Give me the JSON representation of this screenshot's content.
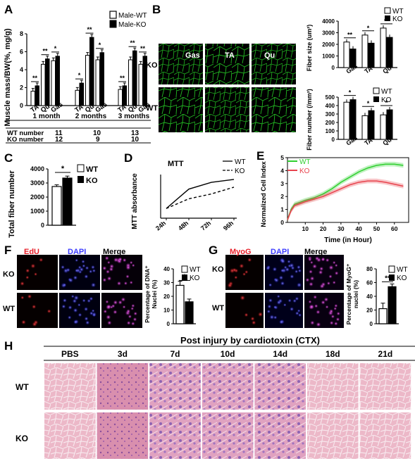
{
  "panels": {
    "A": {
      "letter": "A",
      "ylabel": "Muscle mass/BW(%, mg/g)",
      "legend": [
        "Male-WT",
        "Male-KO"
      ],
      "table": {
        "rows": [
          {
            "label": "WT number",
            "values": [
              "11",
              "10",
              "13"
            ]
          },
          {
            "label": "KO number",
            "values": [
              "12",
              "9",
              "10"
            ]
          }
        ]
      }
    },
    "B": {
      "letter": "B",
      "columns": [
        "Gas",
        "TA",
        "Qu"
      ],
      "rows": [
        "KO",
        "WT"
      ],
      "size_ylabel": "Fiber size (um²)",
      "number_ylabel": "Fiber number (/mm²)"
    },
    "C": {
      "letter": "C"
    },
    "D": {
      "letter": "D"
    },
    "E": {
      "letter": "E"
    },
    "F": {
      "letter": "F",
      "cols": [
        "EdU",
        "DAPI",
        "Merge"
      ],
      "rows": [
        "KO",
        "WT"
      ],
      "ylabel_l1": "Percentage of DNA⁺",
      "ylabel_l2": "Nuclei (%)"
    },
    "G": {
      "letter": "G",
      "cols": [
        "MyoG",
        "DAPI",
        "Merge"
      ],
      "rows": [
        "KO",
        "WT"
      ],
      "ylabel_l1": "Percentage of MyoG⁺",
      "ylabel_l2": "nuclei (%)"
    },
    "H": {
      "letter": "H",
      "title": "Post injury by cardiotoxin (CTX)",
      "columns": [
        "PBS",
        "3d",
        "7d",
        "10d",
        "14d",
        "18d",
        "21d"
      ],
      "rows": [
        "WT",
        "KO"
      ]
    }
  },
  "legend_wt": "WT",
  "legend_ko": "KO",
  "sig1": "*",
  "sig2": "**",
  "colors": {
    "ko": "#000000",
    "wt": "#ffffff",
    "green": "#2fcf2f",
    "red": "#e8434d",
    "edu_red": "#e8202a",
    "dapi_blue": "#3b3bff",
    "merge_magenta": "#c040c0",
    "he_pink": "#e9a9bd",
    "he_purple": "#7f5aa8"
  },
  "chart_data": [
    {
      "panel": "A",
      "type": "bar",
      "groups": [
        "1 month",
        "2 months",
        "3 months"
      ],
      "categories": [
        "TA",
        "Qu",
        "Gas"
      ],
      "yticks": [
        0,
        2,
        4,
        6,
        8
      ],
      "ylim": [
        0,
        8
      ],
      "series": [
        {
          "name": "Male-WT",
          "values": [
            [
              1.6,
              4.6,
              5.0
            ],
            [
              1.7,
              5.6,
              5.1
            ],
            [
              1.8,
              5.1,
              4.6
            ]
          ]
        },
        {
          "name": "Male-KO",
          "values": [
            [
              2.2,
              5.2,
              5.5
            ],
            [
              2.5,
              7.6,
              5.9
            ],
            [
              2.2,
              6.1,
              5.5
            ]
          ]
        }
      ],
      "significance": [
        [
          "**",
          "**",
          "*"
        ],
        [
          "*",
          "**",
          "*"
        ],
        [
          "**",
          "**",
          "**"
        ]
      ]
    },
    {
      "panel": "B-size",
      "type": "bar",
      "categories": [
        "Gas",
        "TA",
        "Qu"
      ],
      "yticks": [
        0,
        1000,
        2000,
        3000,
        4000
      ],
      "ylim": [
        0,
        4000
      ],
      "series": [
        {
          "name": "WT",
          "values": [
            2200,
            2800,
            3400
          ]
        },
        {
          "name": "KO",
          "values": [
            1600,
            2100,
            2600
          ]
        }
      ],
      "significance": [
        "**",
        "*",
        "**"
      ]
    },
    {
      "panel": "B-number",
      "type": "bar",
      "categories": [
        "Gas",
        "TA",
        "Qu"
      ],
      "yticks": [
        0,
        100,
        200,
        300,
        400,
        500
      ],
      "ylim": [
        0,
        500
      ],
      "series": [
        {
          "name": "WT",
          "values": [
            440,
            280,
            290
          ]
        },
        {
          "name": "KO",
          "values": [
            470,
            340,
            350
          ]
        }
      ],
      "significance": [
        "*",
        "*",
        "*"
      ]
    },
    {
      "panel": "C",
      "type": "bar",
      "ylabel": "Total fiber number",
      "categories": [
        "WT",
        "KO"
      ],
      "yticks": [
        0,
        1000,
        2000,
        3000,
        4000
      ],
      "ylim": [
        0,
        4000
      ],
      "values": [
        2750,
        3350
      ],
      "errors": [
        120,
        140
      ],
      "significance": "*"
    },
    {
      "panel": "D",
      "type": "line",
      "title": "MTT",
      "ylabel": "MTT absorbance",
      "x": [
        "24h",
        "48h",
        "72h",
        "96h"
      ],
      "series": [
        {
          "name": "WT",
          "values": [
            1.0,
            3.0,
            3.7,
            4.0
          ]
        },
        {
          "name": "KO",
          "values": [
            1.0,
            2.0,
            2.5,
            3.2
          ]
        }
      ]
    },
    {
      "panel": "E",
      "type": "line",
      "xlabel": "Time (in Hour)",
      "ylabel": "Normalized Cell Index",
      "xticks": [
        10,
        20,
        30,
        40,
        50,
        60
      ],
      "yticks": [
        0,
        1,
        2,
        3,
        4,
        5
      ],
      "xlim": [
        0,
        68
      ],
      "ylim": [
        0,
        5
      ],
      "x": [
        0,
        2,
        4,
        6,
        10,
        15,
        20,
        25,
        30,
        35,
        40,
        45,
        50,
        55,
        60,
        65
      ],
      "series": [
        {
          "name": "WT",
          "values": [
            0.2,
            1.0,
            1.4,
            1.5,
            1.7,
            1.9,
            2.2,
            2.6,
            3.1,
            3.5,
            3.9,
            4.2,
            4.4,
            4.5,
            4.5,
            4.4
          ]
        },
        {
          "name": "KO",
          "values": [
            0.2,
            0.9,
            1.3,
            1.4,
            1.6,
            1.8,
            2.0,
            2.3,
            2.6,
            2.9,
            3.1,
            3.2,
            3.2,
            3.1,
            2.95,
            2.8
          ]
        }
      ]
    },
    {
      "panel": "F",
      "type": "bar",
      "categories": [
        "WT",
        "KO"
      ],
      "yticks": [
        0,
        10,
        20,
        30,
        40
      ],
      "ylim": [
        0,
        40
      ],
      "values": [
        28,
        16
      ],
      "errors": [
        3,
        2
      ],
      "significance": "*"
    },
    {
      "panel": "G",
      "type": "bar",
      "categories": [
        "WT",
        "KO"
      ],
      "yticks": [
        0,
        20,
        40,
        60,
        80
      ],
      "ylim": [
        0,
        80
      ],
      "values": [
        22,
        54
      ],
      "errors": [
        8,
        4
      ],
      "significance": "**"
    }
  ]
}
